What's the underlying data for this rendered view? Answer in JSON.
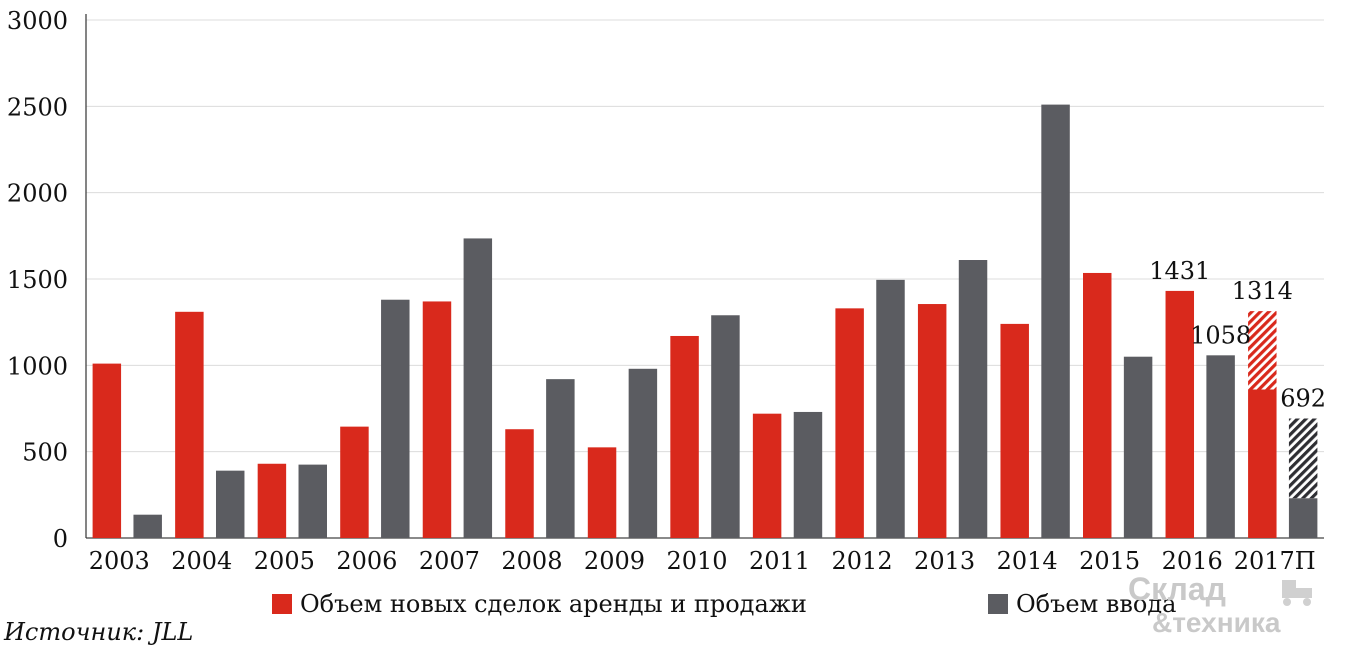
{
  "chart_data": {
    "type": "bar",
    "ylim": [
      0,
      3000
    ],
    "yticks": [
      0,
      500,
      1000,
      1500,
      2000,
      2500,
      3000
    ],
    "grid": true,
    "legend_position": "bottom",
    "categories": [
      "2003",
      "2004",
      "2005",
      "2006",
      "2007",
      "2008",
      "2009",
      "2010",
      "2011",
      "2012",
      "2013",
      "2014",
      "2015",
      "2016",
      "2017П"
    ],
    "series": [
      {
        "name": "Объем новых сделок аренды и продажи",
        "color": "#d9291c",
        "values": [
          1010,
          1310,
          430,
          645,
          1370,
          630,
          525,
          1170,
          720,
          1330,
          1355,
          1240,
          1535,
          1431,
          1314
        ],
        "forecast_solid_last": 860
      },
      {
        "name": "Объем ввода",
        "color": "#5b5c61",
        "values": [
          135,
          390,
          425,
          1380,
          1735,
          920,
          980,
          1290,
          730,
          1495,
          1610,
          2510,
          1050,
          1058,
          692
        ],
        "forecast_solid_last": 230
      }
    ],
    "data_labels": [
      {
        "series": 0,
        "index": 13,
        "text": "1431"
      },
      {
        "series": 0,
        "index": 14,
        "text": "1314"
      },
      {
        "series": 1,
        "index": 13,
        "text": "1058"
      },
      {
        "series": 1,
        "index": 14,
        "text": "692"
      }
    ]
  },
  "source": "Источник: JLL",
  "logo": {
    "line1": "Склад",
    "line2": "&техника"
  }
}
